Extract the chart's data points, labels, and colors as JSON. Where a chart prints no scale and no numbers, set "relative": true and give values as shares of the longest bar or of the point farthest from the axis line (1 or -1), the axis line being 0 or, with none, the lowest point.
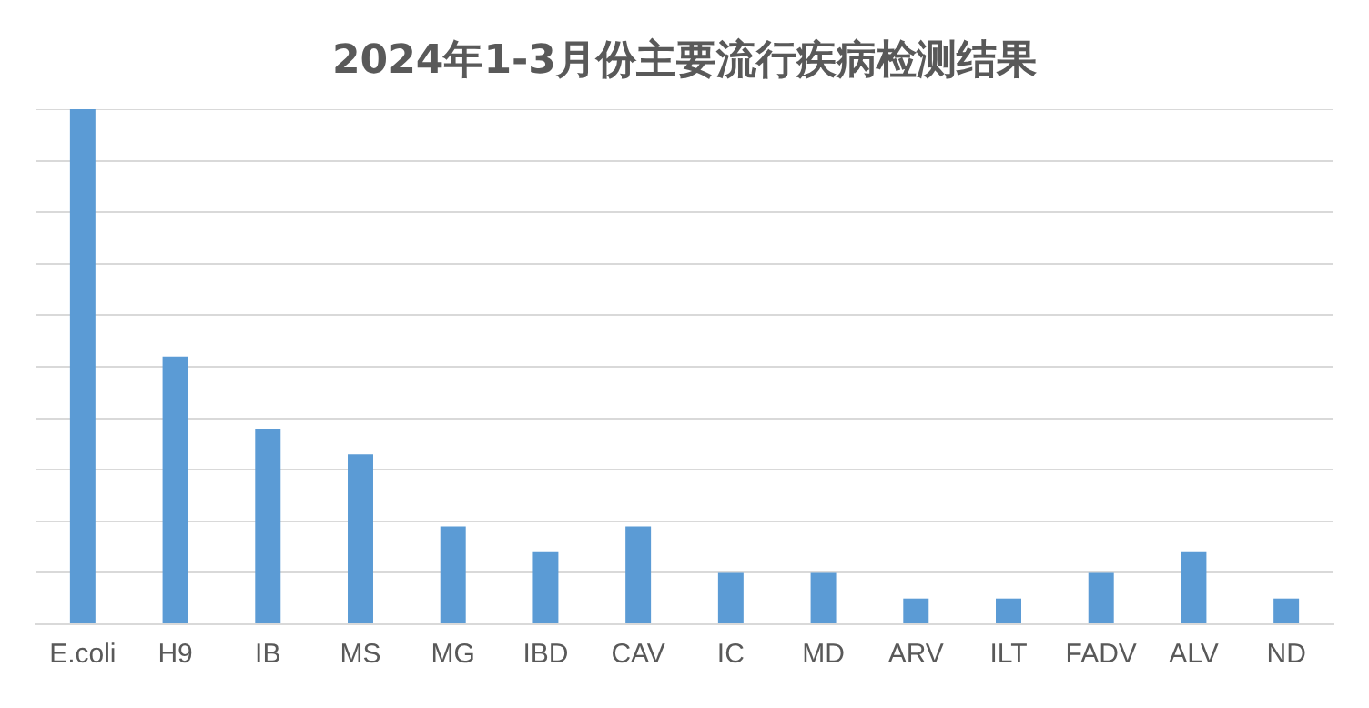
{
  "chart_data": {
    "type": "bar",
    "title": "2024年1-3月份主要流行疾病检测结果",
    "categories": [
      "E.coli",
      "H9",
      "IB",
      "MS",
      "MG",
      "IBD",
      "CAV",
      "IC",
      "MD",
      "ARV",
      "ILT",
      "FADV",
      "ALV",
      "ND"
    ],
    "values": [
      1,
      0.52,
      0.38,
      0.33,
      0.19,
      0.14,
      0.19,
      0.1,
      0.1,
      0.05,
      0.05,
      0.1,
      0.14,
      0.05
    ],
    "color": "#5b9bd5",
    "relative": true,
    "grid": "y"
  }
}
